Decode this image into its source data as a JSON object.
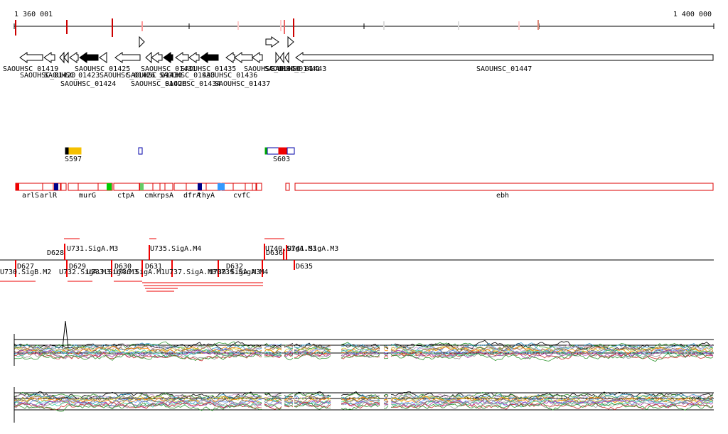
{
  "ruler": {
    "start": "1 360 001",
    "end": "1 400 000"
  },
  "genes": [
    "SAOUHSC_01419",
    "SAOUHSC_01420",
    "SAOUHSC_01423",
    "SAOUHSC_01424",
    "SAOUHSC_01425",
    "SAOUHSC_01426",
    "SAOUHSC_01428",
    "SAOUHSC_01430",
    "SAOUHSC_01431",
    "SAOUHSC_01433",
    "SAOUHSC_01434",
    "SAOUHSC_01435",
    "SAOUHSC_01436",
    "SAOUHSC_01437",
    "SAOUHSC_01440",
    "SAOUHSC_01441",
    "SAOUHSC_01443",
    "SAOUHSC_01447"
  ],
  "segments": [
    "S597",
    "S603"
  ],
  "operons": [
    "arlS",
    "arlR",
    "murG",
    "ctpA",
    "cmk",
    "rpsA",
    "dfrA",
    "thyA",
    "cvfC",
    "ebh"
  ],
  "promoters": [
    "D628",
    "U731.SigA.M3",
    "U735.SigA.M4",
    "U740.SigA.M3",
    "D636",
    "U741.SigA.M3",
    "D627",
    "U730.SigB.M2",
    "D629",
    "U732.SigA.M3",
    "D630",
    "U733.SigA.M3",
    "D631",
    "U736.SigA.M1",
    "U737.SigA.M3",
    "U738.SigA.M3",
    "D632",
    "U739.SigA.M4",
    "D635"
  ]
}
